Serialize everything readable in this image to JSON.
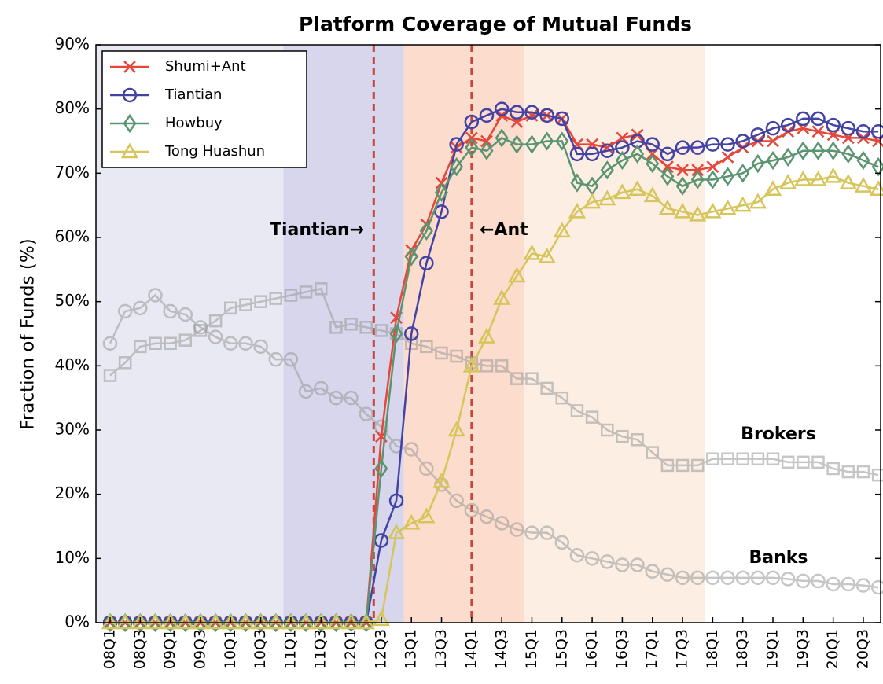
{
  "chart_data": {
    "type": "line",
    "title": "Platform Coverage of Mutual Funds",
    "y_label": "Fraction of Funds (%)",
    "categories": [
      "08Q1",
      null,
      "08Q3",
      null,
      "09Q1",
      null,
      "09Q3",
      null,
      "10Q1",
      null,
      "10Q3",
      null,
      "11Q1",
      null,
      "11Q3",
      null,
      "12Q1",
      null,
      "12Q3",
      null,
      "13Q1",
      null,
      "13Q3",
      null,
      "14Q1",
      null,
      "14Q3",
      null,
      "15Q1",
      null,
      "15Q3",
      null,
      "16Q1",
      null,
      "16Q3",
      null,
      "17Q1",
      null,
      "17Q3",
      null,
      "18Q1",
      null,
      "18Q3",
      null,
      "19Q1",
      null,
      "19Q3",
      null,
      "20Q1",
      null,
      "20Q3",
      null
    ],
    "xlim": [
      -0.94,
      51.15
    ],
    "ylim": [
      0,
      90
    ],
    "yticks": [
      {
        "value": 0,
        "label": "0%"
      },
      {
        "value": 10,
        "label": "10%"
      },
      {
        "value": 20,
        "label": "20%"
      },
      {
        "value": 30,
        "label": "30%"
      },
      {
        "value": 40,
        "label": "40%"
      },
      {
        "value": 50,
        "label": "50%"
      },
      {
        "value": 60,
        "label": "60%"
      },
      {
        "value": 70,
        "label": "70%"
      },
      {
        "value": 80,
        "label": "80%"
      },
      {
        "value": 90,
        "label": "90%"
      }
    ],
    "legend": "upper left",
    "shaded_regions": [
      {
        "start": -0.94,
        "end": 11.5,
        "color": "#e9e9f4"
      },
      {
        "start": 11.5,
        "end": 19.5,
        "color": "#d7d6ec"
      },
      {
        "start": 19.5,
        "end": 27.5,
        "color": "#fcdccd"
      },
      {
        "start": 27.5,
        "end": 39.5,
        "color": "#fdeee4"
      }
    ],
    "vlines": [
      {
        "x": 17.5,
        "color": "#c9443a"
      },
      {
        "x": 24,
        "color": "#c9443a"
      }
    ],
    "annotations": [
      "Tiantian→",
      "←Ant"
    ],
    "series": [
      {
        "name": "Brokers",
        "color": "#999999",
        "marker": "s",
        "in_legend": false,
        "values": [
          38.5,
          40.5,
          43,
          43.5,
          43.5,
          44,
          45.5,
          47,
          49,
          49.5,
          50,
          50.5,
          51,
          51.5,
          52,
          46,
          46.5,
          46,
          45.5,
          45,
          43.5,
          43,
          42,
          41.5,
          40.5,
          40,
          40,
          38,
          38,
          36.5,
          35,
          33,
          32,
          30,
          29,
          28.5,
          26.5,
          24.5,
          24.5,
          24.5,
          25.5,
          25.5,
          25.5,
          25.5,
          25.5,
          25,
          25,
          25,
          24,
          23.5,
          23.5,
          23
        ]
      },
      {
        "name": "Banks",
        "color": "#999999",
        "marker": "o",
        "in_legend": false,
        "values": [
          43.5,
          48.5,
          49,
          51,
          48.5,
          48,
          46,
          44.5,
          43.5,
          43.5,
          43,
          41,
          41,
          36,
          36.5,
          35,
          35,
          32.5,
          30.5,
          27.5,
          27,
          24,
          21.5,
          19,
          17.5,
          16.5,
          15.5,
          14.5,
          14,
          14,
          12.5,
          10.5,
          10,
          9.5,
          9,
          9,
          8,
          7.5,
          7,
          7,
          7,
          7,
          7,
          7,
          7,
          6.8,
          6.5,
          6.5,
          6,
          6,
          5.8,
          5.5
        ]
      },
      {
        "name": "Shumi+Ant",
        "color": "#e5473a",
        "marker": "x",
        "in_legend": true,
        "values": [
          0,
          0,
          0,
          0,
          0,
          0,
          0,
          0,
          0,
          0,
          0,
          0,
          0,
          0,
          0,
          0,
          0,
          0,
          29,
          47.5,
          58,
          62,
          68.5,
          74,
          75.5,
          75,
          79,
          78,
          79,
          79,
          78.5,
          74.5,
          74.5,
          74,
          75.5,
          76,
          73,
          71,
          70.5,
          70.5,
          71,
          72.5,
          74,
          75,
          75,
          76.5,
          77,
          76.5,
          76,
          75.5,
          75.5,
          75
        ]
      },
      {
        "name": "Tiantian",
        "color": "#4343a6",
        "marker": "o",
        "in_legend": true,
        "values": [
          0,
          0,
          0,
          0,
          0,
          0,
          0,
          0,
          0,
          0,
          0,
          0,
          0,
          0,
          0,
          0,
          0,
          0,
          12.8,
          19,
          45,
          56,
          64,
          74.5,
          78,
          79,
          80,
          79.5,
          79.5,
          79,
          78.5,
          73,
          73,
          73.5,
          74,
          75,
          74.5,
          73,
          74,
          74,
          74.5,
          74.5,
          75,
          76,
          77,
          77.5,
          78.5,
          78.5,
          77.5,
          77,
          76.5,
          76.5
        ]
      },
      {
        "name": "Howbuy",
        "color": "#5b9470",
        "marker": "d",
        "in_legend": true,
        "values": [
          0,
          0,
          0,
          0,
          0,
          0,
          0,
          0,
          0,
          0,
          0,
          0,
          0,
          0,
          0,
          0,
          0,
          0,
          24,
          45,
          57,
          61,
          67,
          71,
          74,
          73.5,
          75.5,
          74.5,
          74.5,
          75,
          75,
          68.5,
          68,
          70.5,
          72,
          73,
          71.5,
          69.5,
          68,
          69,
          69,
          69.5,
          70,
          71.5,
          72,
          72.5,
          73.5,
          73.5,
          73.5,
          73,
          72,
          71
        ]
      },
      {
        "name": "Tong Huashun",
        "color": "#d6c55a",
        "marker": "^",
        "in_legend": true,
        "values": [
          0,
          0,
          0,
          0,
          0,
          0,
          0,
          0,
          0,
          0,
          0,
          0,
          0,
          0,
          0,
          0,
          0,
          0,
          0.5,
          14,
          15.5,
          16.5,
          22,
          30,
          40,
          44.5,
          50.5,
          54,
          57.5,
          57,
          61,
          64,
          65.5,
          66,
          67,
          67.5,
          66.5,
          64.5,
          64,
          63.5,
          64,
          64.5,
          65,
          65.5,
          67.5,
          68.5,
          69,
          69,
          69.5,
          68.5,
          68,
          67.5
        ]
      }
    ]
  }
}
